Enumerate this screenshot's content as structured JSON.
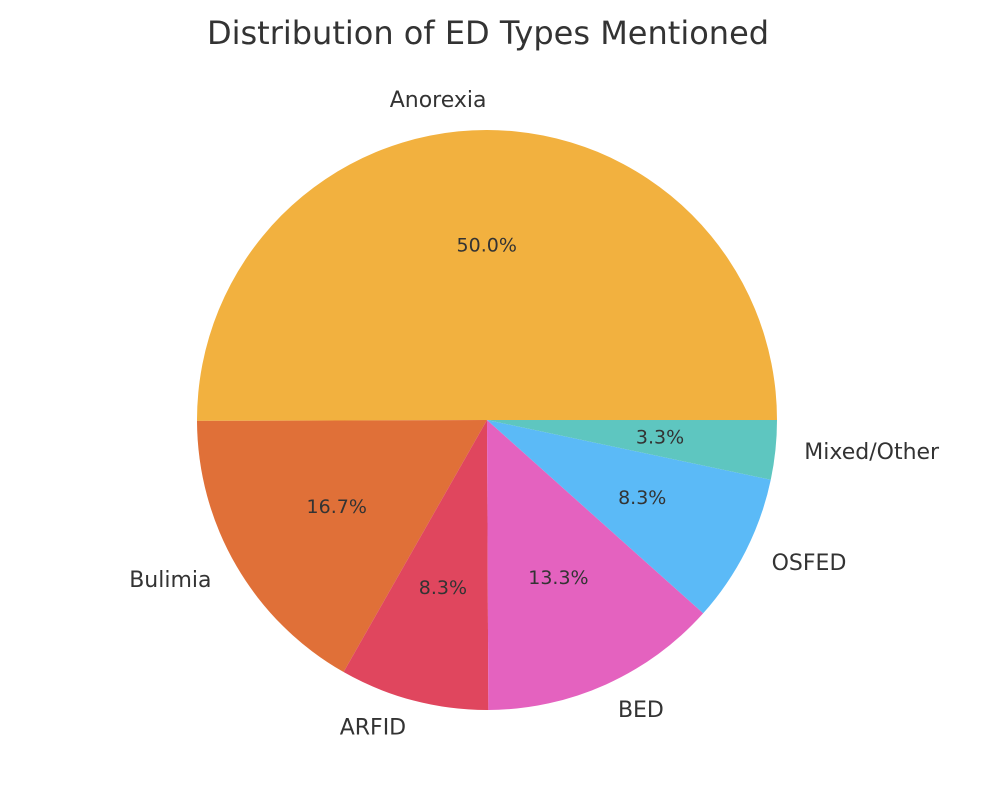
{
  "chart_data": {
    "type": "pie",
    "title": "Distribution of ED Types Mentioned",
    "categories": [
      "Anorexia",
      "Bulimia",
      "ARFID",
      "BED",
      "OSFED",
      "Mixed/Other"
    ],
    "values": [
      50.0,
      16.7,
      8.3,
      13.3,
      8.3,
      3.3
    ],
    "value_labels": [
      "50.0%",
      "16.7%",
      "8.3%",
      "13.3%",
      "8.3%",
      "3.3%"
    ],
    "colors": [
      "#f2b13f",
      "#e07038",
      "#e0465e",
      "#e462bf",
      "#5bbaf7",
      "#5ec6c0"
    ]
  }
}
